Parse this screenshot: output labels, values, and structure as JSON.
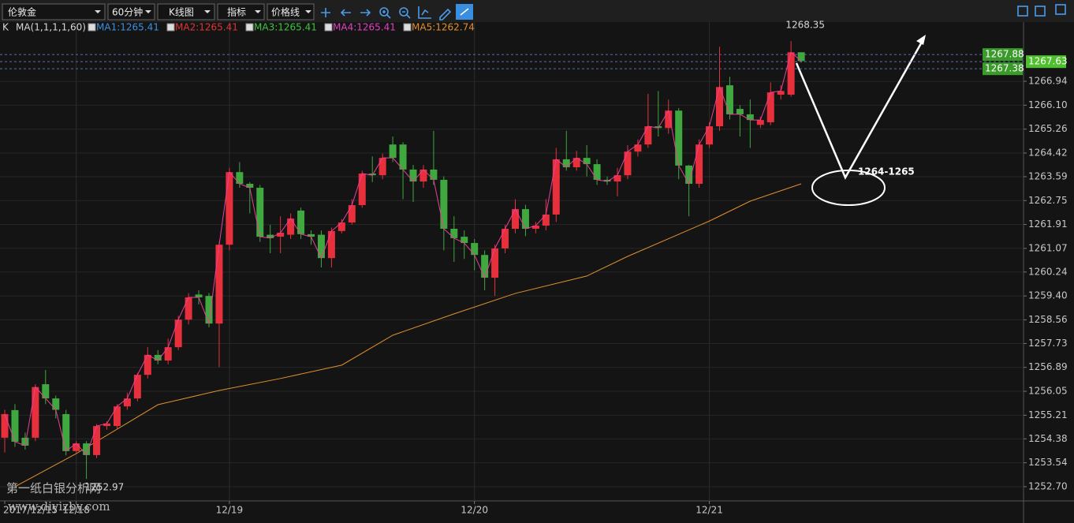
{
  "toolbar": {
    "dropdowns": [
      "伦敦金",
      "60分钟",
      "K线图",
      "指标",
      "价格线"
    ]
  },
  "chart_data": {
    "type": "candlestick",
    "indicator": "K",
    "ma_setting": "MA(1,1,1,1,60)",
    "legend": [
      {
        "label": "MA1:1265.41",
        "color": "#3d8fe0"
      },
      {
        "label": "MA2:1265.41",
        "color": "#e03434"
      },
      {
        "label": "MA3:1265.41",
        "color": "#3cc43c"
      },
      {
        "label": "MA4:1265.41",
        "color": "#e040c0"
      },
      {
        "label": "MA5:1262.74",
        "color": "#e0902f"
      }
    ],
    "up_color": "#e8303c",
    "down_color": "#3fa83f",
    "close_line_color": "#e8409a",
    "categories": [
      "2017/12/15",
      null,
      null,
      null,
      null,
      null,
      null,
      "12/18",
      null,
      null,
      null,
      null,
      null,
      null,
      null,
      null,
      null,
      null,
      null,
      null,
      null,
      null,
      "12/19",
      null,
      null,
      null,
      null,
      null,
      null,
      null,
      null,
      null,
      null,
      null,
      null,
      null,
      null,
      null,
      null,
      null,
      null,
      null,
      null,
      null,
      null,
      null,
      "12/20",
      null,
      null,
      null,
      null,
      null,
      null,
      null,
      null,
      null,
      null,
      null,
      null,
      null,
      null,
      null,
      null,
      null,
      null,
      null,
      null,
      null,
      null,
      "12/21",
      null,
      null,
      null,
      null,
      null,
      null,
      null,
      null,
      null
    ],
    "open": [
      1254.42,
      1255.39,
      1254.42,
      1254.42,
      1256.3,
      1255.8,
      1255.25,
      1253.95,
      1254.22,
      1253.81,
      1254.83,
      1254.83,
      1255.52,
      1255.8,
      1256.63,
      1257.33,
      1257.13,
      1257.6,
      1258.57,
      1259.45,
      1259.4,
      1258.43,
      1261.2,
      1263.75,
      1263.34,
      1263.2,
      1261.55,
      1261.48,
      1261.55,
      1262.4,
      1261.57,
      1261.55,
      1260.73,
      1261.68,
      1261.98,
      1262.59,
      1263.7,
      1263.64,
      1264.72,
      1264.72,
      1263.84,
      1263.42,
      1263.84,
      1263.48,
      1261.76,
      1261.48,
      1261.26,
      1260.84,
      1260.04,
      1261.07,
      1261.76,
      1262.45,
      1261.76,
      1261.87,
      1262.26,
      1264.2,
      1263.92,
      1264.25,
      1264.03,
      1263.48,
      1263.42,
      1263.64,
      1264.47,
      1264.72,
      1265.36,
      1265.3,
      1265.91,
      1263.98,
      1263.34,
      1264.72,
      1265.36,
      1266.8,
      1265.97,
      1265.78,
      1265.41,
      1265.5,
      1266.47,
      1266.47,
      1267.96
    ],
    "close": [
      1255.25,
      1254.28,
      1254.14,
      1256.2,
      1255.8,
      1255.4,
      1253.95,
      1254.22,
      1253.81,
      1254.83,
      1254.92,
      1255.52,
      1255.8,
      1256.63,
      1257.33,
      1257.13,
      1257.6,
      1258.57,
      1259.35,
      1259.35,
      1258.43,
      1261.2,
      1263.75,
      1263.34,
      1263.2,
      1261.48,
      1261.43,
      1261.62,
      1262.12,
      1261.57,
      1261.48,
      1260.73,
      1261.68,
      1261.98,
      1262.59,
      1263.7,
      1263.64,
      1264.25,
      1264.25,
      1263.84,
      1263.42,
      1263.84,
      1263.48,
      1261.76,
      1261.43,
      1261.26,
      1260.84,
      1260.04,
      1261.07,
      1261.76,
      1262.45,
      1261.76,
      1261.87,
      1262.26,
      1264.2,
      1263.92,
      1264.25,
      1264.03,
      1263.48,
      1263.42,
      1263.64,
      1264.47,
      1264.72,
      1265.36,
      1265.3,
      1265.91,
      1263.98,
      1263.34,
      1264.72,
      1265.36,
      1266.74,
      1265.78,
      1265.78,
      1265.58,
      1265.58,
      1266.55,
      1266.6,
      1267.96,
      1267.65
    ],
    "high": [
      1255.4,
      1255.6,
      1254.6,
      1256.3,
      1256.8,
      1255.9,
      1255.4,
      1254.3,
      1254.3,
      1254.9,
      1255.0,
      1255.6,
      1256.0,
      1256.7,
      1257.6,
      1257.5,
      1257.9,
      1258.7,
      1259.5,
      1259.6,
      1259.5,
      1261.3,
      1263.9,
      1264.1,
      1263.4,
      1263.3,
      1261.9,
      1262.2,
      1262.3,
      1262.5,
      1261.7,
      1261.7,
      1261.8,
      1262.1,
      1262.8,
      1263.8,
      1264.3,
      1264.4,
      1265.0,
      1264.8,
      1264.0,
      1264.0,
      1265.2,
      1263.6,
      1262.2,
      1261.7,
      1261.4,
      1261.0,
      1261.2,
      1261.9,
      1262.8,
      1262.6,
      1262.0,
      1262.8,
      1264.6,
      1265.2,
      1264.5,
      1264.7,
      1264.2,
      1263.6,
      1263.9,
      1264.7,
      1264.9,
      1266.5,
      1266.6,
      1266.3,
      1266.0,
      1264.0,
      1264.9,
      1265.5,
      1268.15,
      1267.1,
      1266.1,
      1266.3,
      1265.7,
      1266.9,
      1266.8,
      1268.35,
      1267.96
    ],
    "low": [
      1253.9,
      1254.1,
      1254.0,
      1254.3,
      1255.6,
      1255.1,
      1253.8,
      1253.9,
      1252.97,
      1253.7,
      1254.7,
      1254.7,
      1255.4,
      1255.7,
      1256.5,
      1257.0,
      1257.0,
      1257.5,
      1258.4,
      1259.1,
      1258.3,
      1256.9,
      1261.0,
      1263.2,
      1262.3,
      1261.3,
      1260.9,
      1260.9,
      1261.4,
      1261.4,
      1261.2,
      1260.4,
      1260.4,
      1261.6,
      1261.9,
      1262.5,
      1263.4,
      1263.5,
      1264.1,
      1262.8,
      1262.7,
      1263.2,
      1263.3,
      1261.0,
      1260.6,
      1260.7,
      1260.3,
      1259.6,
      1259.4,
      1260.9,
      1261.6,
      1261.5,
      1261.6,
      1261.7,
      1262.0,
      1263.8,
      1263.8,
      1263.6,
      1263.3,
      1263.3,
      1262.9,
      1263.5,
      1264.3,
      1264.6,
      1265.0,
      1265.1,
      1263.5,
      1262.2,
      1263.2,
      1264.6,
      1265.2,
      1265.6,
      1265.0,
      1264.6,
      1265.3,
      1265.4,
      1266.3,
      1266.4,
      1267.6
    ],
    "ma_line": {
      "color": "#e0902f",
      "x": [
        1,
        7,
        15,
        21,
        27,
        33,
        38,
        44,
        50,
        57,
        61,
        69,
        73,
        78
      ],
      "values": [
        1252.7,
        1253.86,
        1255.58,
        1256.08,
        1256.5,
        1256.97,
        1258.02,
        1258.77,
        1259.49,
        1260.1,
        1260.79,
        1262.03,
        1262.73,
        1263.34
      ]
    },
    "price_lines": [
      1267.88,
      1267.63,
      1267.38
    ],
    "annotation": "1264-1265",
    "watermark": [
      "第一纸白银分析网",
      "www.diyizby.com"
    ],
    "ylim": [
      1252.2,
      1269.02
    ],
    "yticks": [
      {
        "value": 1252.7,
        "label": "1252.70"
      },
      1253.54,
      1254.38,
      1255.21,
      1256.05,
      1256.89,
      1257.73,
      1258.56,
      {
        "value": 1259.4,
        "label": "1259.40"
      },
      1260.24,
      1261.07,
      1261.91,
      1262.75,
      1263.59,
      1264.42,
      1265.26,
      {
        "value": 1266.1,
        "label": "1266.10"
      },
      1266.94
    ],
    "grid": true
  }
}
